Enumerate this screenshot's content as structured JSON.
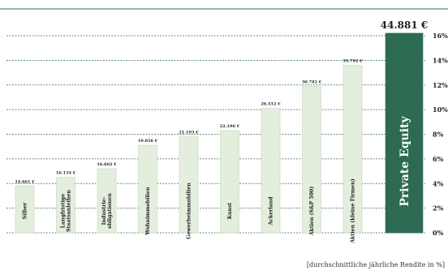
{
  "chart_data": {
    "type": "bar",
    "categories": [
      "Silber",
      "Langfristige Staatsanleihen",
      "Industrie-obligationen",
      "Wohnimmobilien",
      "Gewerbeimmobilien",
      "Kunst",
      "Ackerland",
      "Aktien (S&P 500)",
      "Aktien (kleine Firmen)",
      "Private Equity"
    ],
    "category_lines": [
      [
        "Silber"
      ],
      [
        "Langfristige",
        "Staatsanleihen"
      ],
      [
        "Industrie-",
        "obligationen"
      ],
      [
        "Wohnimmobilien"
      ],
      [
        "Gewerbeimmobilien"
      ],
      [
        "Kunst"
      ],
      [
        "Ackerland"
      ],
      [
        "Aktien (S&P 500)"
      ],
      [
        "Aktien (kleine Firmen)"
      ],
      [
        "Private Equity"
      ]
    ],
    "values": [
      3.8,
      4.5,
      5.2,
      7.1,
      7.8,
      8.3,
      10.1,
      11.9,
      13.6,
      16.2
    ],
    "value_labels": [
      "14.661 €",
      "16.134 €",
      "16.602 €",
      "19.856 €",
      "21.193 €",
      "22.196 €",
      "26.412 €",
      "30.782 €",
      "35.792 €",
      "44.881 €"
    ],
    "highlight_index": 9,
    "yticks": [
      0,
      2,
      4,
      6,
      8,
      10,
      12,
      14,
      16
    ],
    "ytick_labels": [
      "0%",
      "2%",
      "4%",
      "6%",
      "8%",
      "10%",
      "12%",
      "14%",
      "16%"
    ],
    "ylim": [
      0,
      16
    ],
    "ylabel": "[durchschnittliche jährliche Rendite in %]",
    "grid": true,
    "colors": {
      "bar": "#e3eedd",
      "bar_edge": "#c5d7bf",
      "highlight": "#2c6b52",
      "grid": "#2f6e58",
      "text": "#222222"
    }
  }
}
